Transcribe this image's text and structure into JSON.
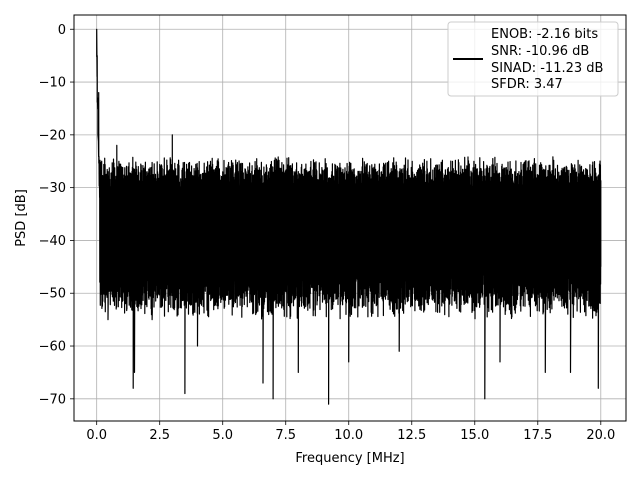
{
  "chart_data": {
    "type": "line",
    "title": "",
    "xlabel": "Frequency [MHz]",
    "ylabel": "PSD [dB]",
    "xlim": [
      -0.9,
      21.0
    ],
    "ylim": [
      -74.2,
      2.7
    ],
    "xticks": [
      0.0,
      2.5,
      5.0,
      7.5,
      10.0,
      12.5,
      15.0,
      17.5,
      20.0
    ],
    "xtick_labels": [
      "0.0",
      "2.5",
      "5.0",
      "7.5",
      "10.0",
      "12.5",
      "15.0",
      "17.5",
      "20.0"
    ],
    "yticks": [
      0,
      -10,
      -20,
      -30,
      -40,
      -50,
      -60,
      -70
    ],
    "ytick_labels": [
      "0",
      "−10",
      "−20",
      "−30",
      "−40",
      "−50",
      "−60",
      "−70"
    ],
    "grid": true,
    "legend_position": "top-right",
    "series": [
      {
        "color": "#000000",
        "x_range": [
          0.0,
          20.0
        ],
        "points": [
          [
            0.0,
            0
          ],
          [
            0.02,
            -5
          ],
          [
            0.05,
            -20
          ],
          [
            0.08,
            -12
          ],
          [
            0.12,
            -30
          ],
          [
            0.2,
            -25
          ],
          [
            0.3,
            -48
          ],
          [
            0.45,
            -55
          ],
          [
            0.8,
            -22
          ],
          [
            1.2,
            -53
          ],
          [
            1.45,
            -68
          ],
          [
            1.5,
            -65
          ],
          [
            2.2,
            -55
          ],
          [
            3.0,
            -20
          ],
          [
            3.5,
            -69
          ],
          [
            4.0,
            -60
          ],
          [
            6.6,
            -67
          ],
          [
            7.0,
            -70
          ],
          [
            8.0,
            -65
          ],
          [
            9.2,
            -71
          ],
          [
            10.0,
            -63
          ],
          [
            12.0,
            -61
          ],
          [
            15.4,
            -70
          ],
          [
            16.0,
            -63
          ],
          [
            17.8,
            -65
          ],
          [
            18.8,
            -65
          ],
          [
            19.9,
            -68
          ],
          [
            20.0,
            -45
          ]
        ],
        "noise_floor_mean": -37,
        "noise_band_top": -26,
        "noise_band_bottom": -49
      }
    ],
    "legend": {
      "entries": [
        "ENOB: -2.16 bits",
        "SNR: -10.96 dB",
        "SINAD: -11.23 dB",
        "SFDR: 3.47"
      ]
    }
  }
}
